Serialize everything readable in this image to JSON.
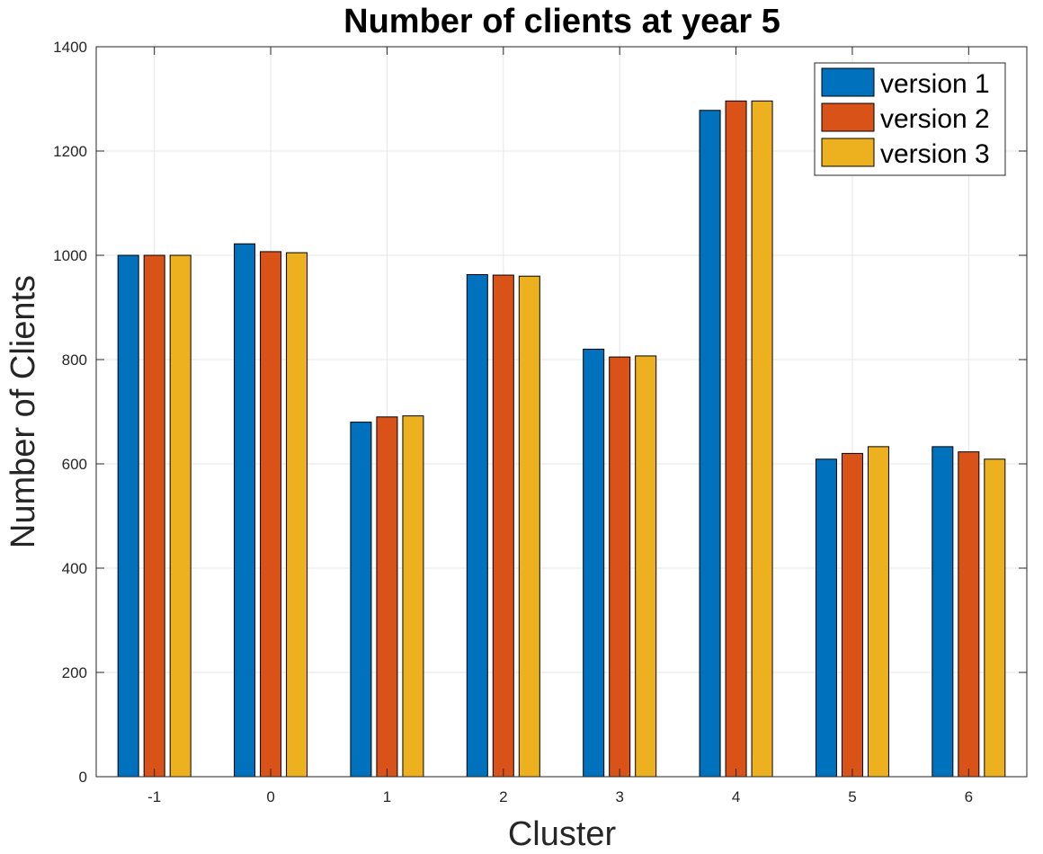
{
  "chart_data": {
    "type": "bar",
    "title": "Number of clients at year 5",
    "xlabel": "Cluster",
    "ylabel": "Number of Clients",
    "categories": [
      "-1",
      "0",
      "1",
      "2",
      "3",
      "4",
      "5",
      "6"
    ],
    "series": [
      {
        "name": "version 1",
        "color": "#0072BD",
        "values": [
          1000,
          1022,
          680,
          963,
          820,
          1278,
          609,
          633
        ]
      },
      {
        "name": "version 2",
        "color": "#D95319",
        "values": [
          1000,
          1007,
          690,
          962,
          805,
          1296,
          620,
          623
        ]
      },
      {
        "name": "version 3",
        "color": "#EDB120",
        "values": [
          1000,
          1005,
          692,
          960,
          807,
          1296,
          633,
          609
        ]
      }
    ],
    "ylim": [
      0,
      1400
    ],
    "yticks": [
      0,
      200,
      400,
      600,
      800,
      1000,
      1200,
      1400
    ],
    "grid": true,
    "legend_position": "top-right"
  }
}
